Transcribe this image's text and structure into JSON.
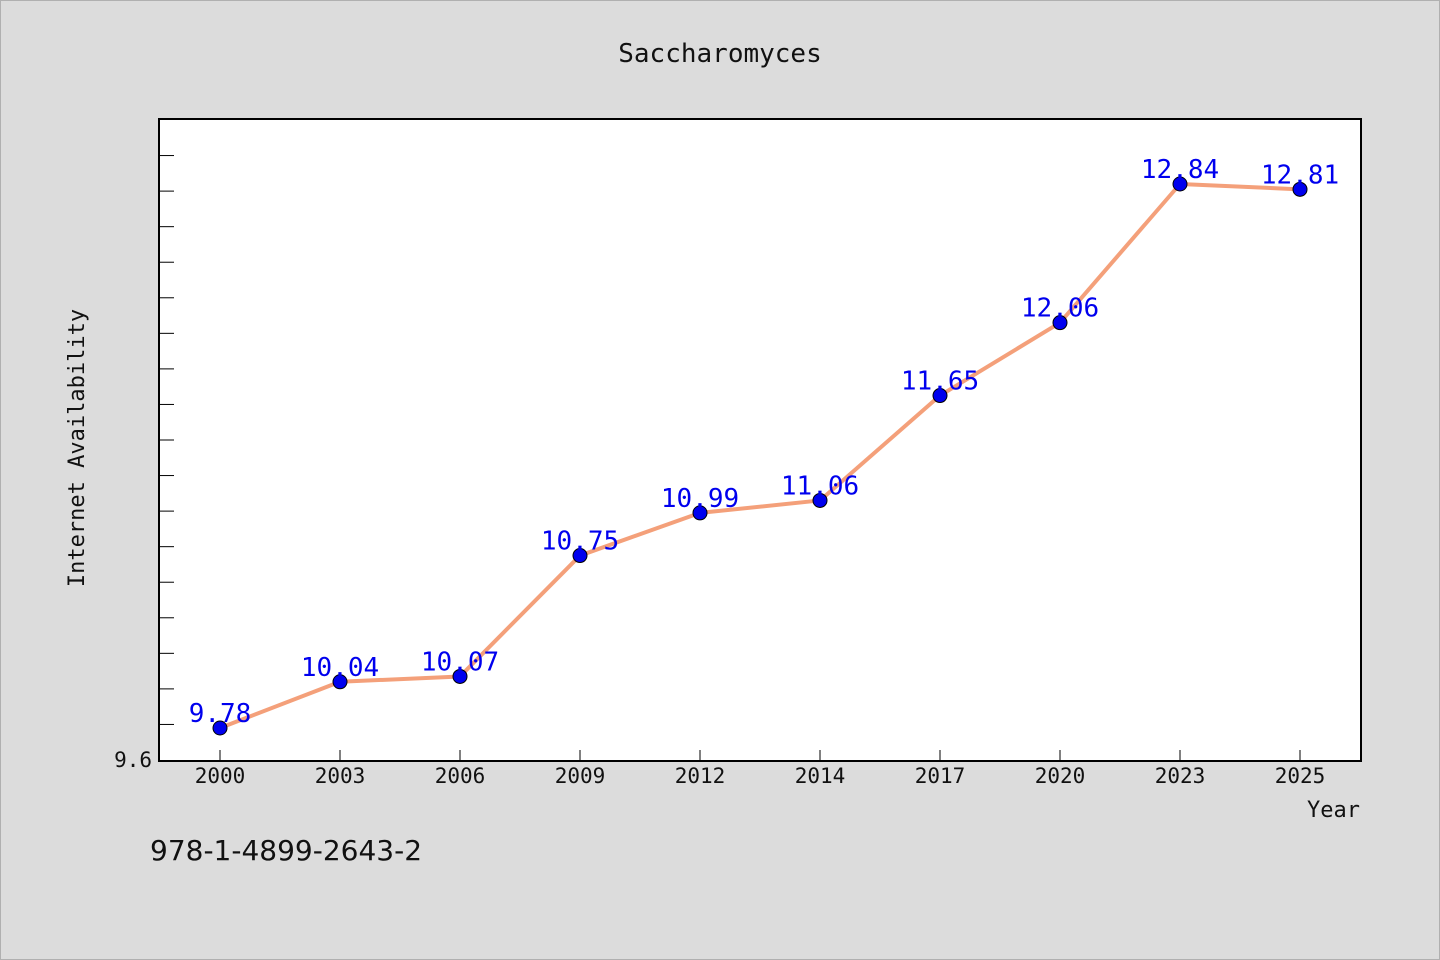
{
  "chart_data": {
    "type": "line",
    "title": "Saccharomyces",
    "xlabel": "Year",
    "ylabel": "Internet Availability",
    "categories": [
      "2000",
      "2003",
      "2006",
      "2009",
      "2012",
      "2014",
      "2017",
      "2020",
      "2023",
      "2025"
    ],
    "series": [
      {
        "values": [
          9.78,
          10.04,
          10.07,
          10.75,
          10.99,
          11.06,
          11.65,
          12.06,
          12.84,
          12.81
        ],
        "labels": [
          "9.78",
          "10.04",
          "10.07",
          "10.75",
          "10.99",
          "11.06",
          "11.65",
          "12.06",
          "12.84",
          "12.81"
        ]
      }
    ],
    "ylim": [
      9.6,
      13.2
    ],
    "ytick_labels": [
      "9.6"
    ],
    "grid": false,
    "colors": {
      "line": "#f4a07a",
      "marker": "#0000ee",
      "data_label": "#0000ee",
      "plot_background": "#ffffff",
      "page_background": "#dcdcdc"
    }
  },
  "footer": {
    "code": "978-1-4899-2643-2"
  }
}
